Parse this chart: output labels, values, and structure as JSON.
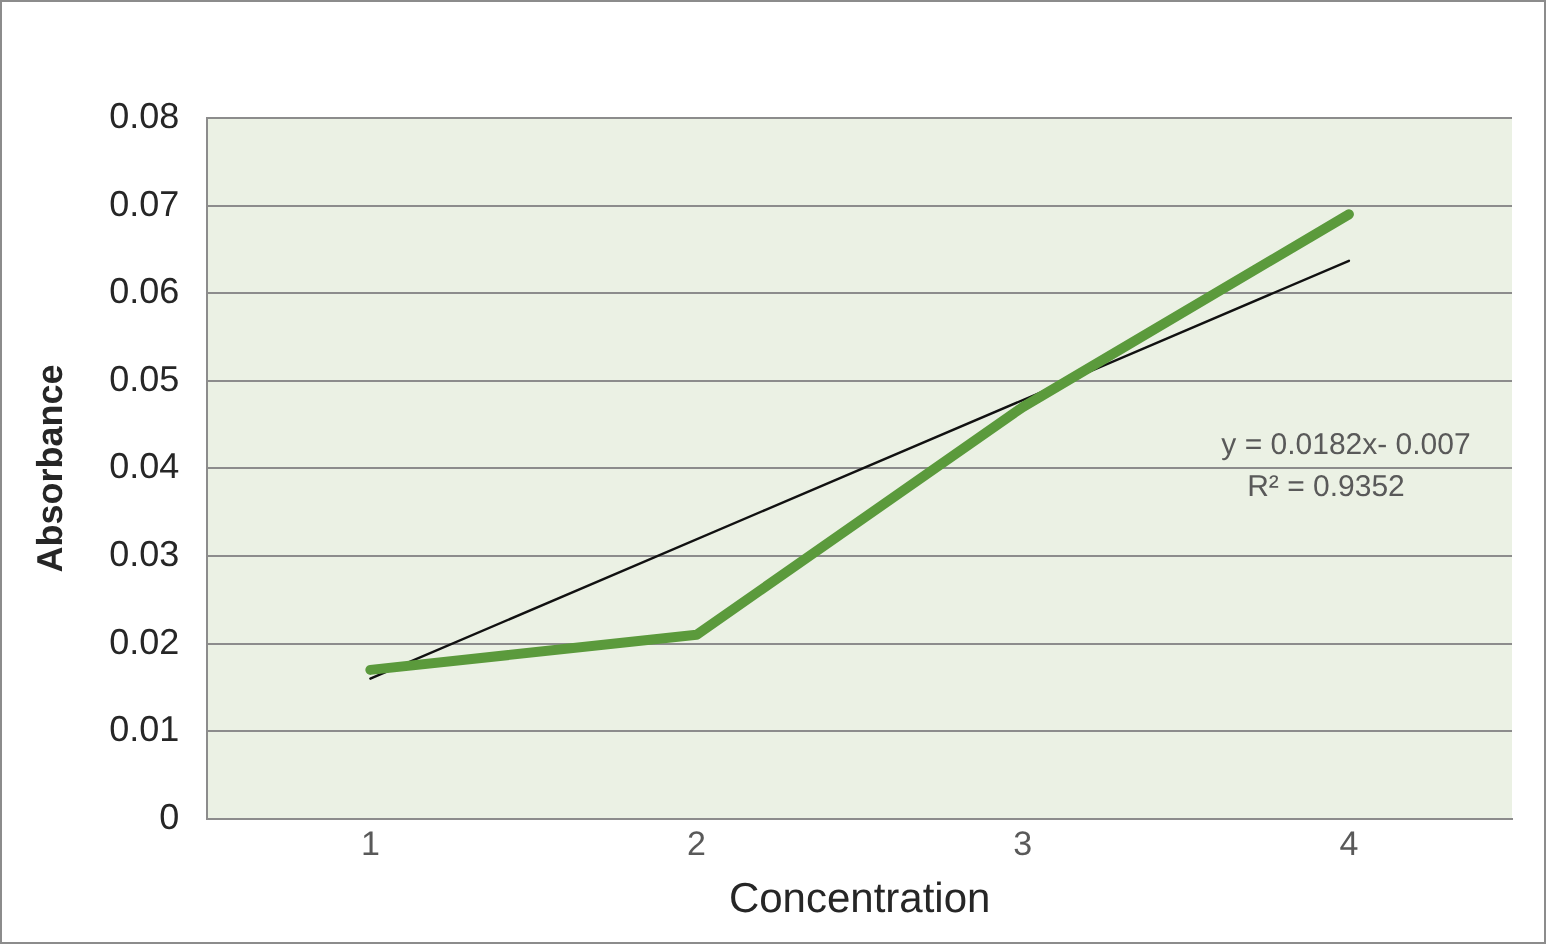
{
  "chart_data": {
    "type": "line",
    "xlabel": "Concentration",
    "ylabel": "Absorbance",
    "x": [
      1,
      2,
      3,
      4
    ],
    "xlim": [
      0.5,
      4.5
    ],
    "xticks": [
      1,
      2,
      3,
      4
    ],
    "ylim": [
      0,
      0.08
    ],
    "yticks": [
      0,
      0.01,
      0.02,
      0.03,
      0.04,
      0.05,
      0.06,
      0.07,
      0.08
    ],
    "series": [
      {
        "color": "#5b9a3c",
        "values": [
          0.017,
          0.021,
          0.047,
          0.069
        ]
      },
      {
        "type": "line",
        "color": "#111111",
        "x": [
          1,
          4
        ],
        "values": [
          0.016,
          0.0637
        ]
      }
    ],
    "annotations": [
      "y = 0.0182x- 0.007",
      "R² = 0.9352"
    ],
    "grid": "y",
    "legend": false,
    "marker": "none"
  }
}
